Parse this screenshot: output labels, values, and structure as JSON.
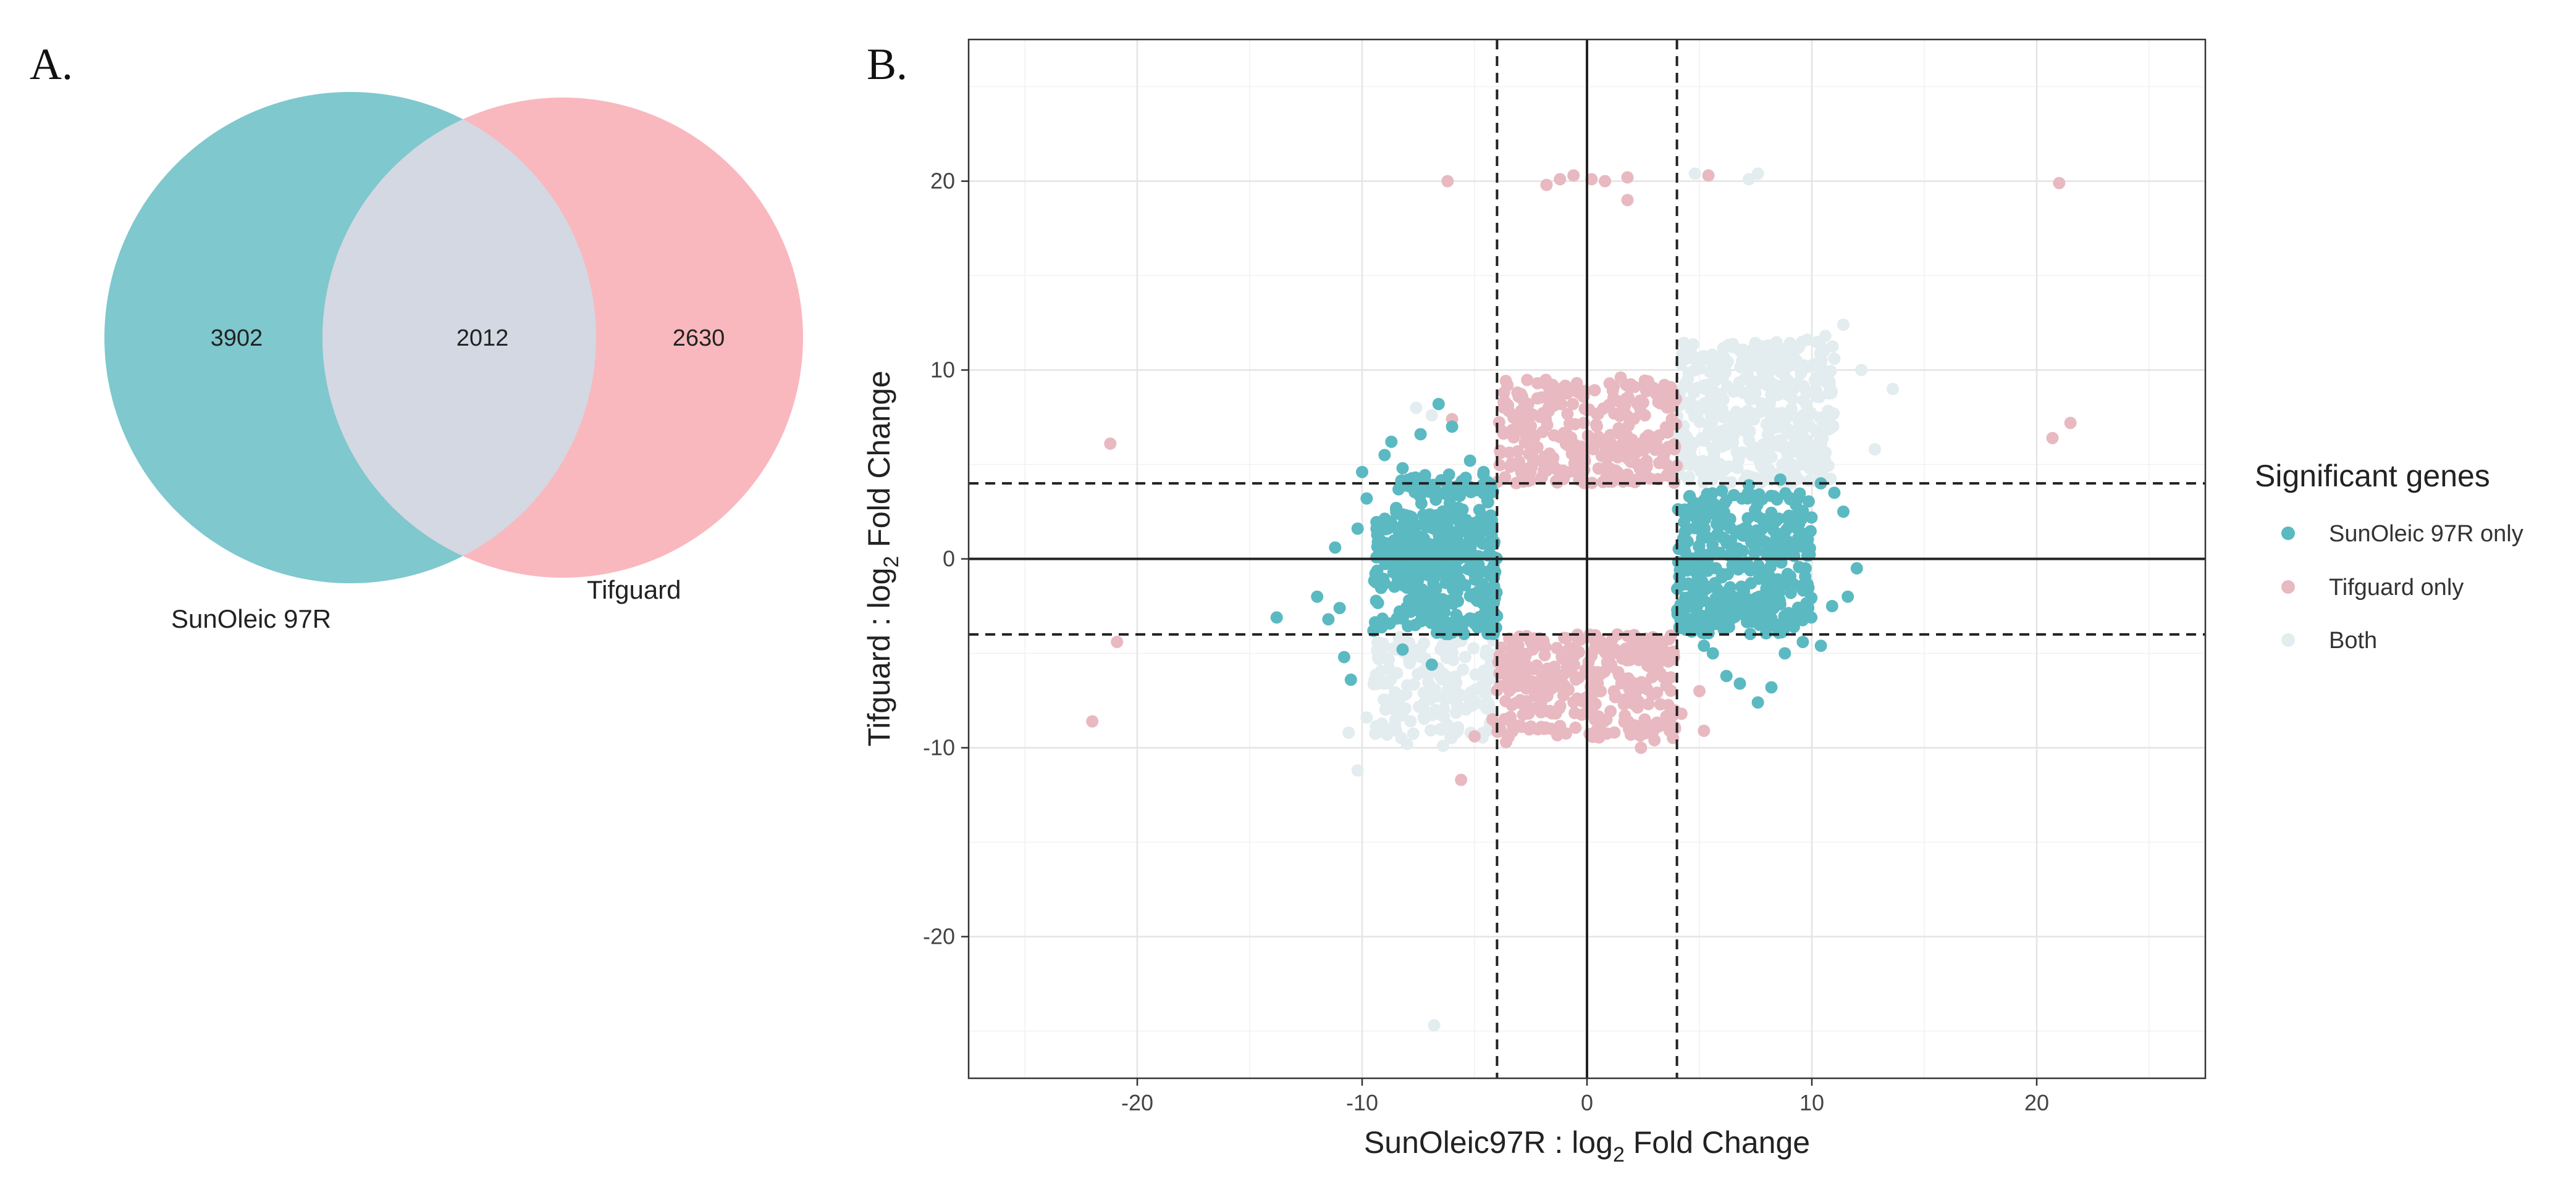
{
  "panels": {
    "a_label": "A.",
    "b_label": "B."
  },
  "venn": {
    "left_name": "SunOleic 97R",
    "right_name": "Tifguard",
    "left_only": "3902",
    "both": "2012",
    "right_only": "2630",
    "colors": {
      "left": "#7ec8ce",
      "right": "#f9b8be",
      "overlap": "#d3d8e2"
    }
  },
  "chart_data": {
    "type": "scatter",
    "xlabel_main": "SunOleic97R : log",
    "xlabel_sub": "2",
    "xlabel_rest": " Fold Change",
    "ylabel_main": "Tifguard : log",
    "ylabel_sub": "2",
    "ylabel_rest": " Fold Change",
    "xlim": [
      -27.5,
      27.5
    ],
    "ylim": [
      -27.5,
      27.5
    ],
    "x_ticks": [
      -20,
      -10,
      0,
      10,
      20
    ],
    "y_ticks": [
      -20,
      -10,
      0,
      10,
      20
    ],
    "x_tick_labels": [
      "-20",
      "-10",
      "0",
      "10",
      "20"
    ],
    "y_tick_labels": [
      "-20",
      "-10",
      "0",
      "10",
      "20"
    ],
    "threshold_lines": {
      "x": [
        -4,
        4
      ],
      "y": [
        -4,
        4
      ]
    },
    "grid": true,
    "legend": {
      "title": "Significant genes",
      "placement": "right",
      "entries": [
        {
          "name": "SunOleic 97R only",
          "color": "#5bb9c2"
        },
        {
          "name": "Tifguard only",
          "color": "#e8b9c0"
        },
        {
          "name": "Both",
          "color": "#e3ecee"
        }
      ]
    },
    "series": [
      {
        "name": "SunOleic 97R only",
        "color": "#5bb9c2",
        "points": [
          [
            -13.8,
            -3.1
          ],
          [
            -11.2,
            0.6
          ],
          [
            -11.0,
            -2.6
          ],
          [
            -10.8,
            -5.2
          ],
          [
            -10.5,
            -6.4
          ],
          [
            -10.0,
            4.6
          ],
          [
            -9.8,
            3.2
          ],
          [
            -9.5,
            -3.8
          ],
          [
            -9.0,
            5.5
          ],
          [
            -8.7,
            6.2
          ],
          [
            -8.2,
            4.8
          ],
          [
            -7.4,
            6.6
          ],
          [
            -6.6,
            8.2
          ],
          [
            -6.0,
            7.0
          ],
          [
            -6.9,
            -5.6
          ],
          [
            -8.2,
            -4.8
          ],
          [
            -11.5,
            -3.2
          ],
          [
            -12.0,
            -2.0
          ],
          [
            -10.2,
            1.6
          ],
          [
            -9.2,
            -1.0
          ],
          [
            -5.2,
            5.2
          ],
          [
            -4.6,
            4.6
          ],
          [
            -4.4,
            3.0
          ],
          [
            -4.2,
            -1.5
          ],
          [
            -4.6,
            -3.0
          ],
          [
            5.2,
            -4.6
          ],
          [
            5.6,
            -5.0
          ],
          [
            6.2,
            -6.2
          ],
          [
            6.8,
            -6.6
          ],
          [
            7.6,
            -7.6
          ],
          [
            8.2,
            -6.8
          ],
          [
            8.8,
            -5.0
          ],
          [
            9.6,
            -4.4
          ],
          [
            10.4,
            -4.6
          ],
          [
            10.9,
            -2.5
          ],
          [
            11.6,
            -2.0
          ],
          [
            12.0,
            -0.5
          ],
          [
            11.4,
            2.5
          ],
          [
            11.0,
            3.5
          ],
          [
            10.4,
            4.0
          ],
          [
            6.0,
            3.6
          ],
          [
            7.2,
            3.9
          ],
          [
            8.6,
            4.2
          ],
          [
            5.0,
            2.8
          ],
          [
            4.4,
            -2.6
          ],
          [
            9.2,
            -3.6
          ]
        ],
        "clusters": [
          {
            "x": [
              -9.5,
              -4.0
            ],
            "y": [
              -4.0,
              2.5
            ],
            "n": 320
          },
          {
            "x": [
              -8.5,
              -4.0
            ],
            "y": [
              -1.0,
              4.5
            ],
            "n": 140
          },
          {
            "x": [
              4.0,
              10.0
            ],
            "y": [
              -3.5,
              3.5
            ],
            "n": 330
          },
          {
            "x": [
              4.0,
              9.0
            ],
            "y": [
              -4.0,
              -2.0
            ],
            "n": 80
          }
        ]
      },
      {
        "name": "Tifguard only",
        "color": "#e8b9c0",
        "points": [
          [
            -6.2,
            20.0
          ],
          [
            -1.8,
            19.8
          ],
          [
            -1.2,
            20.1
          ],
          [
            -0.6,
            20.3
          ],
          [
            0.2,
            20.1
          ],
          [
            0.8,
            20.0
          ],
          [
            1.8,
            20.2
          ],
          [
            1.8,
            19.0
          ],
          [
            5.4,
            20.3
          ],
          [
            21.0,
            19.9
          ],
          [
            -21.2,
            6.1
          ],
          [
            -20.9,
            -4.4
          ],
          [
            -22.0,
            -8.6
          ],
          [
            20.7,
            6.4
          ],
          [
            21.5,
            7.2
          ],
          [
            -5.6,
            -11.7
          ],
          [
            -4.2,
            -8.5
          ],
          [
            -5.0,
            -9.4
          ],
          [
            2.4,
            -10.0
          ],
          [
            3.0,
            -9.6
          ],
          [
            4.2,
            -8.2
          ],
          [
            5.0,
            -7.0
          ],
          [
            5.2,
            -9.1
          ],
          [
            -6.0,
            7.4
          ],
          [
            -3.6,
            -9.7
          ],
          [
            0.6,
            -9.2
          ],
          [
            -2.2,
            9.3
          ],
          [
            1.5,
            9.6
          ]
        ],
        "clusters": [
          {
            "x": [
              -4.0,
              4.0
            ],
            "y": [
              4.0,
              9.5
            ],
            "n": 300
          },
          {
            "x": [
              -4.0,
              4.0
            ],
            "y": [
              -9.5,
              -4.0
            ],
            "n": 300
          }
        ]
      },
      {
        "name": "Both",
        "color": "#e3ecee",
        "points": [
          [
            4.8,
            20.4
          ],
          [
            7.2,
            20.1
          ],
          [
            7.6,
            20.4
          ],
          [
            13.6,
            9.0
          ],
          [
            11.4,
            12.4
          ],
          [
            10.6,
            11.8
          ],
          [
            -6.8,
            -24.7
          ],
          [
            -10.2,
            -11.2
          ],
          [
            -10.6,
            -9.2
          ],
          [
            -9.8,
            -8.4
          ],
          [
            -8.0,
            -9.8
          ],
          [
            -6.4,
            -9.9
          ],
          [
            -7.6,
            8.0
          ],
          [
            -6.9,
            7.6
          ],
          [
            -6.2,
            -8.8
          ],
          [
            12.2,
            10.0
          ],
          [
            11.0,
            10.6
          ],
          [
            9.8,
            11.6
          ],
          [
            12.8,
            5.8
          ]
        ],
        "clusters": [
          {
            "x": [
              4.0,
              11.0
            ],
            "y": [
              4.0,
              11.5
            ],
            "n": 430
          },
          {
            "x": [
              -9.5,
              -4.0
            ],
            "y": [
              -9.5,
              -4.0
            ],
            "n": 170
          }
        ]
      }
    ]
  }
}
